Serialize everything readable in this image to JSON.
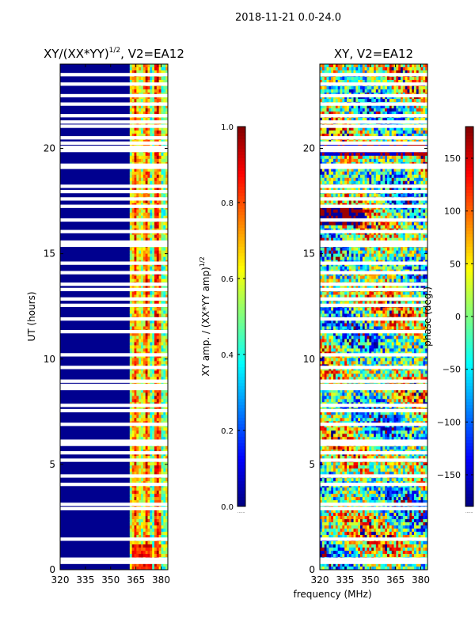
{
  "suptitle": "2018-11-21 0.0-24.0",
  "colors": {
    "background": "#ffffff",
    "stripe": "#ffffff",
    "axis": "#000000",
    "jet_dark_blue": "#00008f"
  },
  "chart_data": [
    {
      "type": "heatmap",
      "title": "XY/(XX*YY)^{1/2}, V2=EA12",
      "title_main": "XY/(XX*YY)",
      "title_sup": "1/2",
      "title_tail": ", V2=EA12",
      "xlabel": "",
      "ylabel": "UT (hours)",
      "xlim": [
        320,
        384
      ],
      "ylim": [
        0,
        24
      ],
      "xticks": [
        320,
        335,
        350,
        365,
        380
      ],
      "yticks": [
        0,
        5,
        10,
        15,
        20
      ],
      "colormap": "jet",
      "pattern": "amplitude",
      "colorbar": {
        "label_main": "XY amp. / (XX*YY amp)",
        "label_sup": "1/2",
        "range": [
          0.0,
          1.0
        ],
        "ticks": [
          "0.0",
          "0.2",
          "0.4",
          "0.6",
          "0.8",
          "1.0"
        ],
        "tick_values": [
          0.0,
          0.2,
          0.4,
          0.6,
          0.8,
          1.0
        ],
        "extra_label": "......"
      }
    },
    {
      "type": "heatmap",
      "title": "XY, V2=EA12",
      "xlabel": "frequency (MHz)",
      "ylabel": "",
      "xlim": [
        320,
        384
      ],
      "ylim": [
        0,
        24
      ],
      "xticks": [
        320,
        335,
        350,
        365,
        380
      ],
      "yticks": [
        0,
        5,
        10,
        15,
        20
      ],
      "colormap": "jet",
      "pattern": "phase",
      "colorbar": {
        "label": "phase (deg.)",
        "range": [
          -180,
          180
        ],
        "ticks": [
          "−150",
          "−100",
          "−50",
          "0",
          "50",
          "100",
          "150"
        ],
        "tick_values": [
          -150,
          -100,
          -50,
          0,
          50,
          100,
          150
        ],
        "extra_label": "......"
      }
    }
  ],
  "flagged_time_rows_hours": [
    0.35,
    0.5,
    1.45,
    2.9,
    3.1,
    4.05,
    4.45,
    5.2,
    5.55,
    5.95,
    6.1,
    6.9,
    7.55,
    7.8,
    8.6,
    8.75,
    8.95,
    9.6,
    10.2,
    11.3,
    11.9,
    12.55,
    12.85,
    13.3,
    13.55,
    14.1,
    14.55,
    15.4,
    15.55,
    16.05,
    16.6,
    17.25,
    17.6,
    17.95,
    18.2,
    19.1,
    19.2,
    19.9,
    20.05,
    20.25,
    20.5,
    21.05,
    21.25,
    21.55,
    22.1,
    22.5,
    23.05,
    23.5
  ],
  "flagged_row_width_hours": 0.08
}
